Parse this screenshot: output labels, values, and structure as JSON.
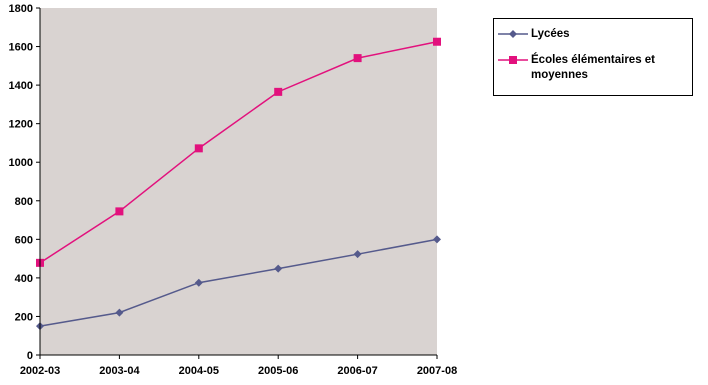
{
  "chart_data": {
    "type": "line",
    "x": [
      "2002-03",
      "2003-04",
      "2004-05",
      "2005-06",
      "2006-07",
      "2007-08"
    ],
    "ylim": [
      0,
      1800
    ],
    "yticks": [
      "0",
      "200",
      "400",
      "600",
      "800",
      "1000",
      "1200",
      "1400",
      "1600",
      "1800"
    ],
    "grid": false,
    "legend_position": "top-right",
    "plot_background": "#d9d3d1",
    "series": [
      {
        "name": "Lycées",
        "values": [
          150,
          220,
          375,
          448,
          523,
          600
        ],
        "color": "#555a8c",
        "marker": "diamond"
      },
      {
        "name": "Écoles élémentaires et moyennes",
        "values": [
          478,
          745,
          1072,
          1365,
          1540,
          1625
        ],
        "color": "#e2117d",
        "marker": "square"
      }
    ]
  }
}
